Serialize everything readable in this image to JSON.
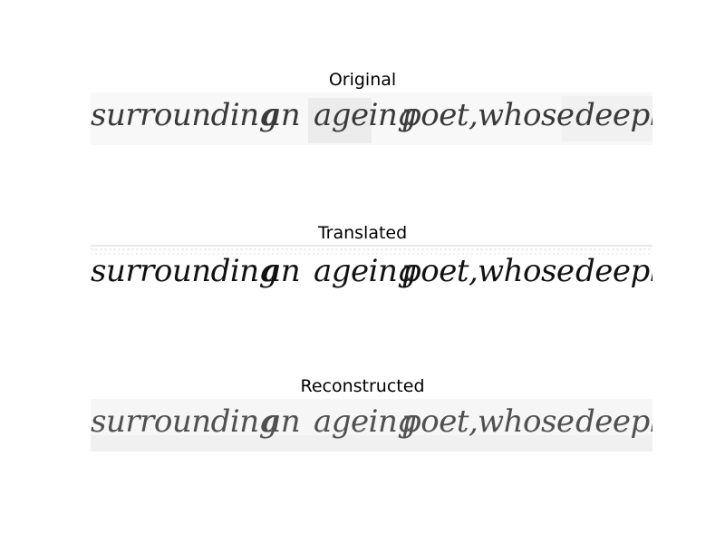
{
  "panels": [
    {
      "title": "Original",
      "words": [
        "surrounding",
        "an",
        "ageing",
        "poet,",
        "whose",
        "deeply"
      ]
    },
    {
      "title": "Translated",
      "words": [
        "surrounding",
        "an",
        "ageing",
        "poet,",
        "whose",
        "deeply"
      ]
    },
    {
      "title": "Reconstructed",
      "words": [
        "surrounding",
        "an",
        "ageing",
        "poet,",
        "whose",
        "deeply"
      ]
    }
  ]
}
